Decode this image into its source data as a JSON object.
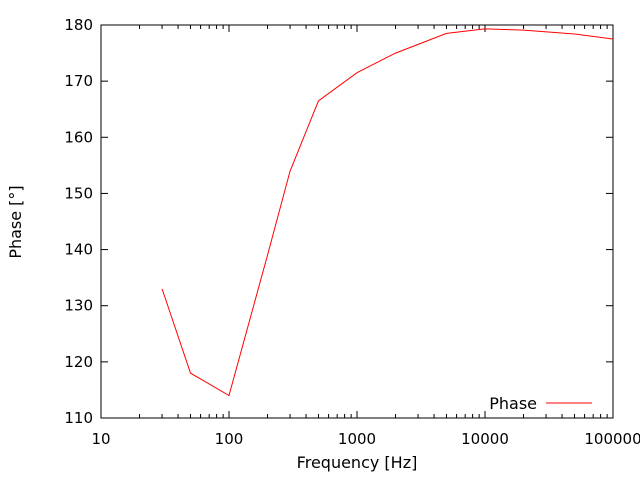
{
  "chart_data": {
    "type": "line",
    "title": "",
    "xlabel": "Frequency [Hz]",
    "ylabel": "Phase [°]",
    "xscale": "log",
    "xlim": [
      10,
      100000
    ],
    "ylim": [
      110,
      180
    ],
    "xticks": [
      10,
      100,
      1000,
      10000,
      100000
    ],
    "xtick_labels": [
      "10",
      "100",
      "1000",
      "10000",
      "100000"
    ],
    "yticks": [
      110,
      120,
      130,
      140,
      150,
      160,
      170,
      180
    ],
    "ytick_labels": [
      "110",
      "120",
      "130",
      "140",
      "150",
      "160",
      "170",
      "180"
    ],
    "grid": false,
    "legend_position": "bottom-right",
    "background_color": "#ffffff",
    "axis_color": "#000000",
    "series": [
      {
        "name": "Phase",
        "color": "#ff0000",
        "points": [
          [
            30,
            133
          ],
          [
            50,
            118
          ],
          [
            100,
            114
          ],
          [
            200,
            139
          ],
          [
            300,
            154
          ],
          [
            500,
            166.5
          ],
          [
            1000,
            171.5
          ],
          [
            2000,
            175
          ],
          [
            5000,
            178.5
          ],
          [
            10000,
            179.3
          ],
          [
            20000,
            179.1
          ],
          [
            50000,
            178.4
          ],
          [
            100000,
            177.5
          ]
        ]
      }
    ]
  }
}
